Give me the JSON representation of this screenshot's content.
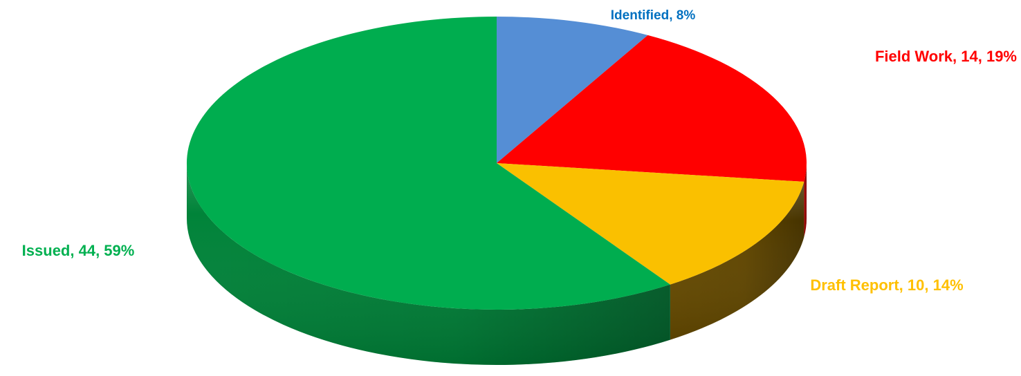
{
  "chart_data": {
    "type": "pie",
    "style": "3d",
    "title": "",
    "slices": [
      {
        "name": "Identified",
        "value": 6,
        "percent": 8,
        "label": "Identified, 8%",
        "color": "#558ed5",
        "side": "#3c6ca8",
        "label_color": "#0070c0"
      },
      {
        "name": "Field Work",
        "value": 14,
        "percent": 19,
        "label": "Field Work, 14, 19%",
        "color": "#ff0000",
        "side": "#b00000",
        "label_color": "#ff0000"
      },
      {
        "name": "Draft Report",
        "value": 10,
        "percent": 14,
        "label": "Draft Report, 10, 14%",
        "color": "#fac000",
        "side": "#6b4e00",
        "label_color": "#ffc000"
      },
      {
        "name": "Issued",
        "value": 44,
        "percent": 59,
        "label": "Issued, 44, 59%",
        "color": "#00ad4f",
        "side": "#008a3c",
        "label_color": "#00b050"
      }
    ]
  }
}
